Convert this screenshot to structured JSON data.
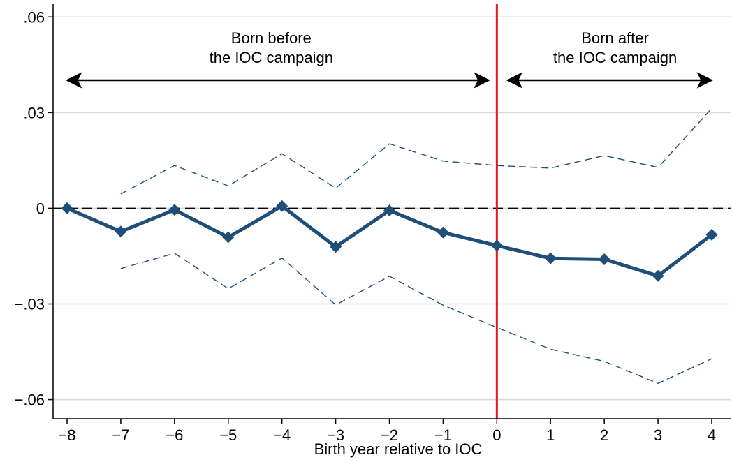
{
  "chart_data": {
    "type": "line",
    "title": "",
    "xlabel": "Birth year relative to IOC",
    "ylabel": "",
    "x": [
      -8,
      -7,
      -6,
      -5,
      -4,
      -3,
      -2,
      -1,
      0,
      1,
      2,
      3,
      4
    ],
    "xticks": [
      -8,
      -7,
      -6,
      -5,
      -4,
      -3,
      -2,
      -1,
      0,
      1,
      2,
      3,
      4
    ],
    "xtick_labels": [
      "−8",
      "−7",
      "−6",
      "−5",
      "−4",
      "−3",
      "−2",
      "−1",
      "0",
      "1",
      "2",
      "3",
      "4"
    ],
    "xlim": [
      -8,
      4
    ],
    "ylim": [
      -0.066,
      0.064
    ],
    "yticks": [
      -0.06,
      -0.03,
      0,
      0.03,
      0.06
    ],
    "ytick_labels": [
      "−.06",
      "−.03",
      "0",
      ".03",
      ".06"
    ],
    "grid": true,
    "series": [
      {
        "role": "estimate",
        "color": "#1f4e79",
        "marker": "diamond",
        "values": [
          0.0,
          -0.0073,
          -0.0005,
          -0.0091,
          0.0007,
          -0.0121,
          -0.0007,
          -0.0076,
          -0.0117,
          -0.0157,
          -0.016,
          -0.0212,
          -0.0083
        ]
      },
      {
        "role": "upper-ci",
        "color": "#1f4e79",
        "style": "dashed",
        "values": [
          null,
          0.0045,
          0.0134,
          0.007,
          0.0171,
          0.0063,
          0.0202,
          0.0148,
          0.0134,
          0.0126,
          0.0165,
          0.0128,
          0.0313
        ]
      },
      {
        "role": "lower-ci",
        "color": "#1f4e79",
        "style": "dashed",
        "values": [
          null,
          -0.0189,
          -0.0141,
          -0.0252,
          -0.0156,
          -0.0303,
          -0.0213,
          -0.0304,
          -0.0374,
          -0.0442,
          -0.048,
          -0.0549,
          -0.0472
        ]
      }
    ],
    "reference_lines": [
      {
        "axis": "y",
        "value": 0,
        "style": "dashed",
        "color": "#000000"
      },
      {
        "axis": "x",
        "value": 0,
        "style": "solid",
        "color": "#e31a1c"
      }
    ],
    "annotations": [
      {
        "lines": [
          "Born before",
          "the IOC campaign"
        ],
        "x": -4.2,
        "arrow_from": -8,
        "arrow_to": -0.15
      },
      {
        "lines": [
          "Born after",
          "the IOC campaign"
        ],
        "x": 2.2,
        "arrow_from": 0.2,
        "arrow_to": 4
      }
    ],
    "colors": {
      "series": "#1f4e79",
      "grid": "#d9d9d9",
      "vline": "#e31a1c",
      "axis": "#000000"
    }
  }
}
